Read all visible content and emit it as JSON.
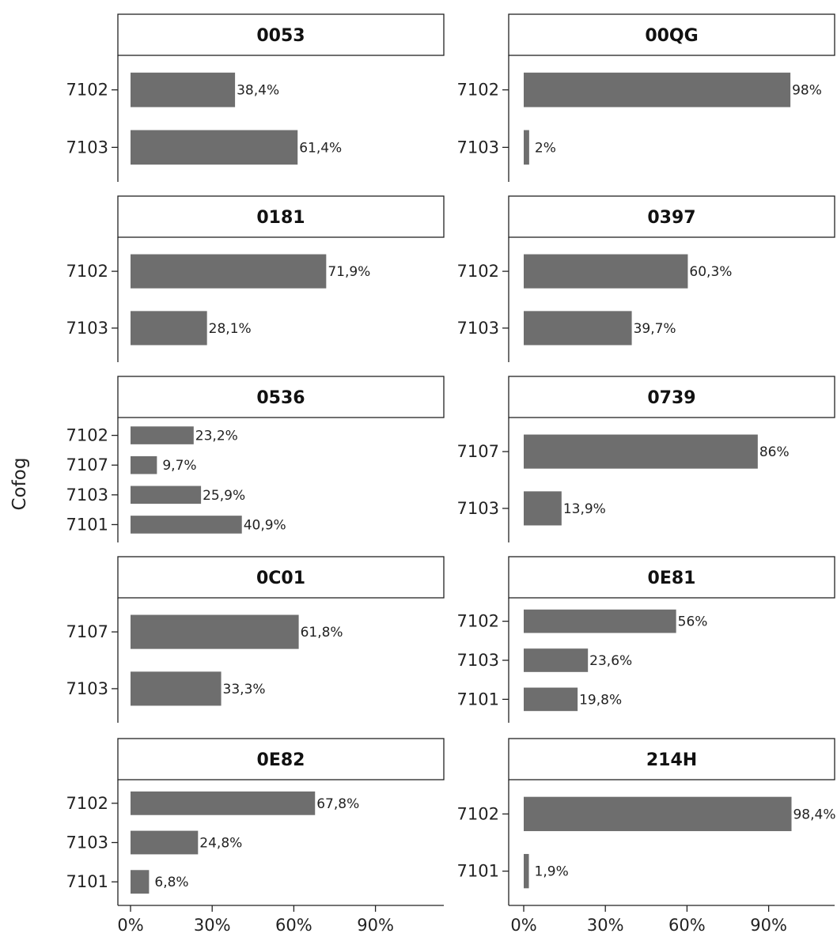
{
  "chart_data": {
    "type": "bar",
    "orientation": "horizontal",
    "faceted": true,
    "ylabel": "Cofog",
    "xlabel": "",
    "xlim": [
      0,
      100
    ],
    "x_ticks": [
      0,
      30,
      60,
      90
    ],
    "x_tick_labels": [
      "0%",
      "30%",
      "60%",
      "90%"
    ],
    "bar_color": "#6e6e6e",
    "grid": false,
    "panels": [
      {
        "title": "0053",
        "categories": [
          "7102",
          "7103"
        ],
        "values": [
          38.4,
          61.4
        ],
        "labels": [
          "38,4%",
          "61,4%"
        ]
      },
      {
        "title": "00QG",
        "categories": [
          "7102",
          "7103"
        ],
        "values": [
          98,
          2
        ],
        "labels": [
          "98%",
          "2%"
        ]
      },
      {
        "title": "0181",
        "categories": [
          "7102",
          "7103"
        ],
        "values": [
          71.9,
          28.1
        ],
        "labels": [
          "71,9%",
          "28,1%"
        ]
      },
      {
        "title": "0397",
        "categories": [
          "7102",
          "7103"
        ],
        "values": [
          60.3,
          39.7
        ],
        "labels": [
          "60,3%",
          "39,7%"
        ]
      },
      {
        "title": "0536",
        "categories": [
          "7102",
          "7107",
          "7103",
          "7101"
        ],
        "values": [
          23.2,
          9.7,
          25.9,
          40.9
        ],
        "labels": [
          "23,2%",
          "9,7%",
          "25,9%",
          "40,9%"
        ]
      },
      {
        "title": "0739",
        "categories": [
          "7107",
          "7103"
        ],
        "values": [
          86,
          13.9
        ],
        "labels": [
          "86%",
          "13,9%"
        ]
      },
      {
        "title": "0C01",
        "categories": [
          "7107",
          "7103"
        ],
        "values": [
          61.8,
          33.3
        ],
        "labels": [
          "61,8%",
          "33,3%"
        ]
      },
      {
        "title": "0E81",
        "categories": [
          "7102",
          "7103",
          "7101"
        ],
        "values": [
          56,
          23.6,
          19.8
        ],
        "labels": [
          "56%",
          "23,6%",
          "19,8%"
        ]
      },
      {
        "title": "0E82",
        "categories": [
          "7102",
          "7103",
          "7101"
        ],
        "values": [
          67.8,
          24.8,
          6.8
        ],
        "labels": [
          "67,8%",
          "24,8%",
          "6,8%"
        ]
      },
      {
        "title": "214H",
        "categories": [
          "7102",
          "7101"
        ],
        "values": [
          98.4,
          1.9
        ],
        "labels": [
          "98,4%",
          "1,9%"
        ]
      }
    ]
  }
}
